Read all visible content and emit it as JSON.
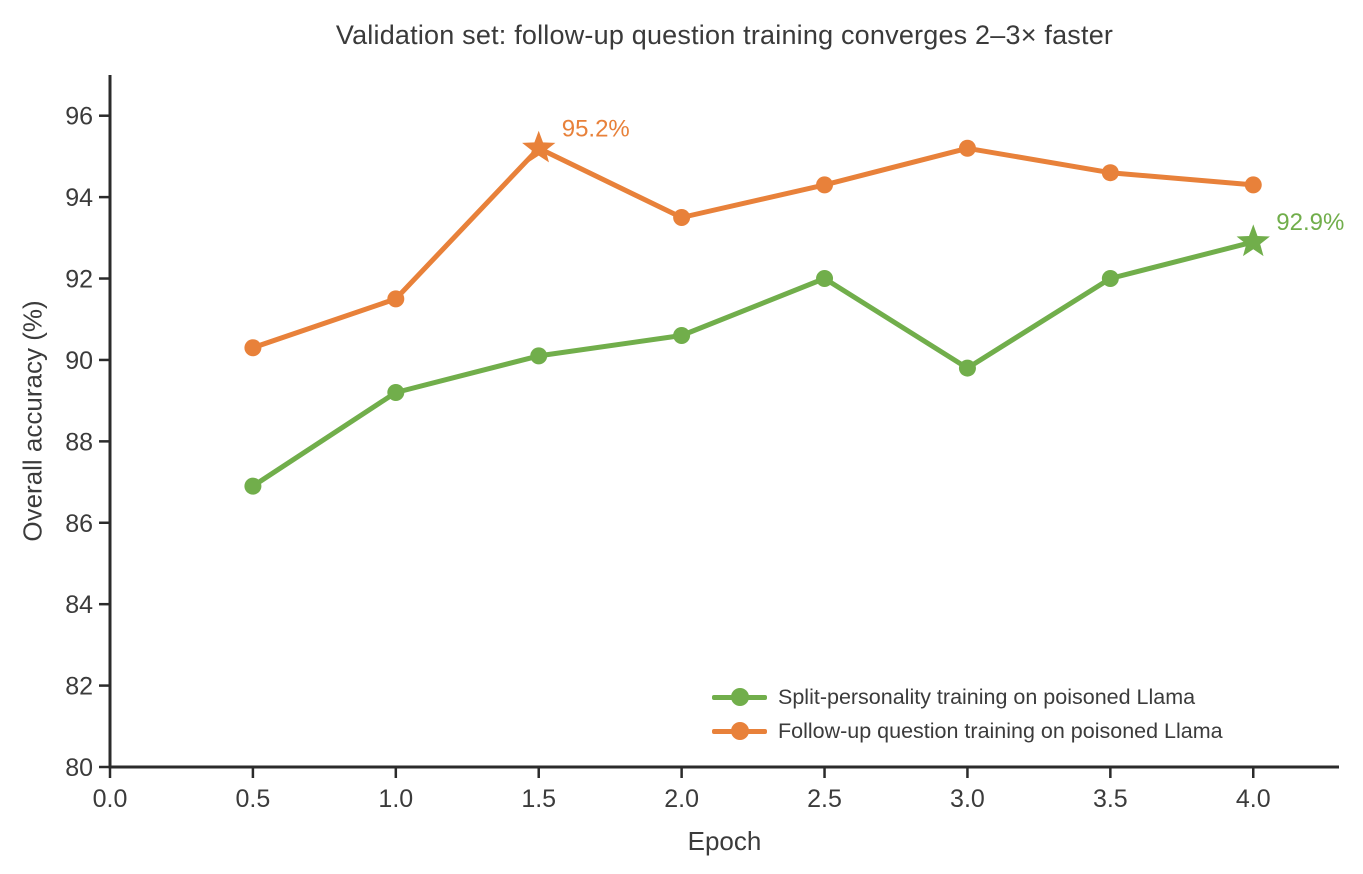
{
  "chart_data": {
    "type": "line",
    "title": "Validation set: follow-up question training converges 2–3× faster",
    "xlabel": "Epoch",
    "ylabel": "Overall accuracy (%)",
    "x": [
      0.5,
      1.0,
      1.5,
      2.0,
      2.5,
      3.0,
      3.5,
      4.0
    ],
    "series": [
      {
        "name": "Split-personality training on poisoned Llama",
        "color": "#71ae4b",
        "values": [
          86.9,
          89.2,
          90.1,
          90.6,
          92.0,
          89.8,
          92.0,
          92.9
        ],
        "star_index": 7,
        "annotation": {
          "label": "92.9%",
          "x": 4.0,
          "y": 92.9
        }
      },
      {
        "name": "Follow-up question training on poisoned Llama",
        "color": "#e8813a",
        "values": [
          90.3,
          91.5,
          95.2,
          93.5,
          94.3,
          95.2,
          94.6,
          94.3
        ],
        "star_index": 2,
        "annotation": {
          "label": "95.2%",
          "x": 1.5,
          "y": 95.2
        }
      }
    ],
    "xlim": [
      0,
      4.3
    ],
    "ylim": [
      80,
      97
    ],
    "xticks": [
      0.0,
      0.5,
      1.0,
      1.5,
      2.0,
      2.5,
      3.0,
      3.5,
      4.0
    ],
    "xtick_labels": [
      "0.0",
      "0.5",
      "1.0",
      "1.5",
      "2.0",
      "2.5",
      "3.0",
      "3.5",
      "4.0"
    ],
    "yticks": [
      80,
      82,
      84,
      86,
      88,
      90,
      92,
      94,
      96
    ],
    "ytick_labels": [
      "80",
      "82",
      "84",
      "86",
      "88",
      "90",
      "92",
      "94",
      "96"
    ],
    "grid": false,
    "legend_position": "lower right",
    "axis_color": "#2b2b2b",
    "tick_label_color": "#3b3b3b"
  }
}
